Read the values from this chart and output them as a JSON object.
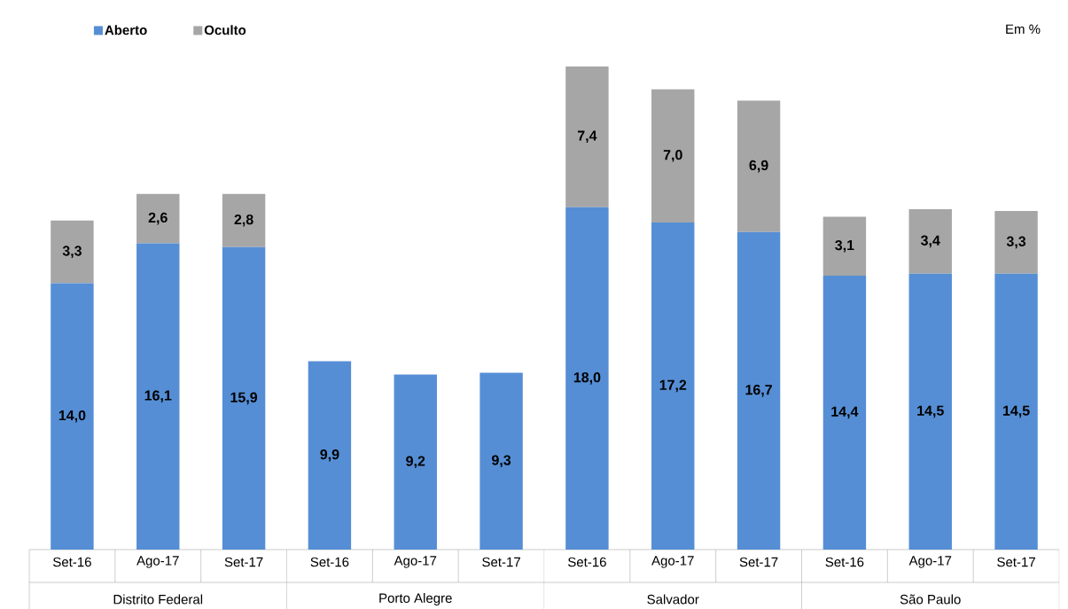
{
  "chart_data": {
    "type": "bar",
    "stacked": true,
    "ylabel": "Em %",
    "categories": [
      "Set-16",
      "Ago-17",
      "Set-17",
      "Set-16",
      "Ago-17",
      "Set-17",
      "Set-16",
      "Ago-17",
      "Set-17",
      "Set-16",
      "Ago-17",
      "Set-17"
    ],
    "annotations": [
      "Distrito Federal",
      "Porto Alegre",
      "Salvador",
      "São Paulo"
    ],
    "series": [
      {
        "name": "Aberto",
        "color": "#558ed5",
        "values": [
          14.0,
          16.1,
          15.9,
          9.9,
          9.2,
          9.3,
          18.0,
          17.2,
          16.7,
          14.4,
          14.5,
          14.5
        ],
        "value_labels": [
          "14,0",
          "16,1",
          "15,9",
          "9,9",
          "9,2",
          "9,3",
          "18,0",
          "17,2",
          "16,7",
          "14,4",
          "14,5",
          "14,5"
        ]
      },
      {
        "name": "Oculto",
        "color": "#a6a6a6",
        "values": [
          3.3,
          2.6,
          2.8,
          null,
          null,
          null,
          7.4,
          7.0,
          6.9,
          3.1,
          3.4,
          3.3
        ],
        "value_labels": [
          "3,3",
          "2,6",
          "2,8",
          null,
          null,
          null,
          "7,4",
          "7,0",
          "6,9",
          "3,1",
          "3,4",
          "3,3"
        ]
      }
    ],
    "legend": "top left"
  }
}
